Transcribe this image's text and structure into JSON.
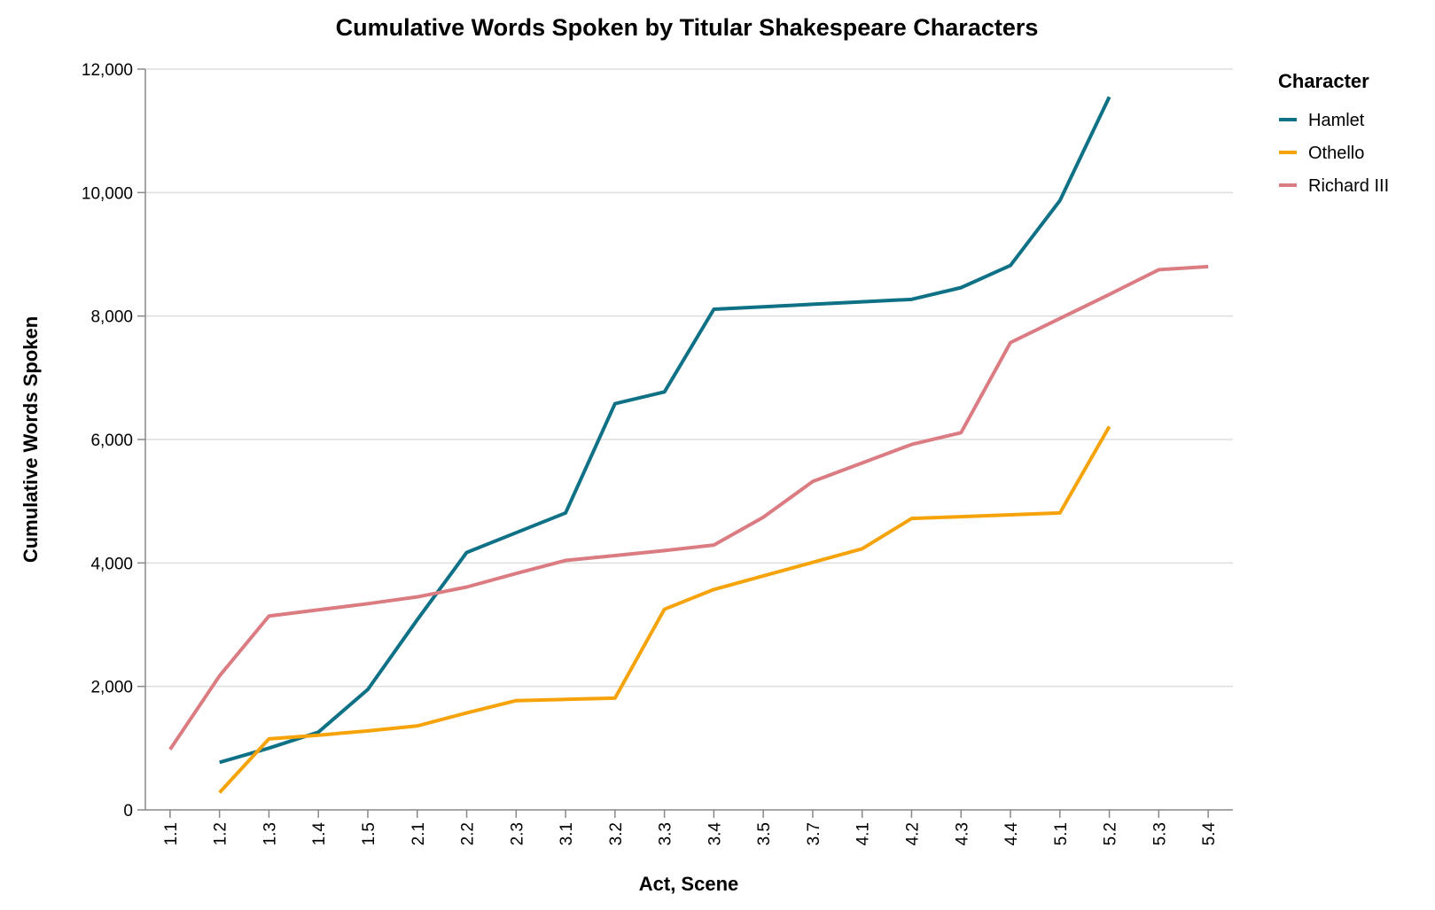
{
  "chart_data": {
    "type": "line",
    "title": "Cumulative Words Spoken by Titular Shakespeare Characters",
    "xlabel": "Act, Scene",
    "ylabel": "Cumulative Words Spoken",
    "ylim": [
      0,
      12000
    ],
    "yticks": [
      "0",
      "2,000",
      "4,000",
      "6,000",
      "8,000",
      "10,000",
      "12,000"
    ],
    "ytick_values": [
      0,
      2000,
      4000,
      6000,
      8000,
      10000,
      12000
    ],
    "categories": [
      "1.1",
      "1.2",
      "1.3",
      "1.4",
      "1.5",
      "2.1",
      "2.2",
      "2.3",
      "3.1",
      "3.2",
      "3.3",
      "3.4",
      "3.5",
      "3.7",
      "4.1",
      "4.2",
      "4.3",
      "4.4",
      "5.1",
      "5.2",
      "5.3",
      "5.4"
    ],
    "grid": true,
    "legend": {
      "title": "Character",
      "position": "right"
    },
    "series": [
      {
        "name": "Hamlet",
        "color": "#0e7185",
        "points": [
          {
            "x": "1.2",
            "y": 770
          },
          {
            "x": "1.3",
            "y": 1000
          },
          {
            "x": "1.4",
            "y": 1260
          },
          {
            "x": "1.5",
            "y": 1950
          },
          {
            "x": "2.1",
            "y": 3080
          },
          {
            "x": "2.2",
            "y": 4170
          },
          {
            "x": "2.3",
            "y": 4490
          },
          {
            "x": "3.1",
            "y": 4810
          },
          {
            "x": "3.2",
            "y": 6580
          },
          {
            "x": "3.3",
            "y": 6770
          },
          {
            "x": "3.4",
            "y": 8110
          },
          {
            "x": "3.5",
            "y": 8150
          },
          {
            "x": "3.7",
            "y": 8190
          },
          {
            "x": "4.1",
            "y": 8230
          },
          {
            "x": "4.2",
            "y": 8270
          },
          {
            "x": "4.3",
            "y": 8460
          },
          {
            "x": "4.4",
            "y": 8820
          },
          {
            "x": "5.1",
            "y": 9870
          },
          {
            "x": "5.2",
            "y": 11550
          }
        ]
      },
      {
        "name": "Othello",
        "color": "#f6a30a",
        "points": [
          {
            "x": "1.2",
            "y": 280
          },
          {
            "x": "1.3",
            "y": 1150
          },
          {
            "x": "1.4",
            "y": 1210
          },
          {
            "x": "1.5",
            "y": 1280
          },
          {
            "x": "2.1",
            "y": 1360
          },
          {
            "x": "2.2",
            "y": 1570
          },
          {
            "x": "2.3",
            "y": 1770
          },
          {
            "x": "3.1",
            "y": 1790
          },
          {
            "x": "3.2",
            "y": 1810
          },
          {
            "x": "3.3",
            "y": 3250
          },
          {
            "x": "3.4",
            "y": 3570
          },
          {
            "x": "3.5",
            "y": 3790
          },
          {
            "x": "3.7",
            "y": 4010
          },
          {
            "x": "4.1",
            "y": 4230
          },
          {
            "x": "4.2",
            "y": 4720
          },
          {
            "x": "4.3",
            "y": 4750
          },
          {
            "x": "4.4",
            "y": 4780
          },
          {
            "x": "5.1",
            "y": 4810
          },
          {
            "x": "5.2",
            "y": 6210
          }
        ]
      },
      {
        "name": "Richard III",
        "color": "#db7b82",
        "points": [
          {
            "x": "1.1",
            "y": 980
          },
          {
            "x": "1.2",
            "y": 2170
          },
          {
            "x": "1.3",
            "y": 3140
          },
          {
            "x": "1.4",
            "y": 3240
          },
          {
            "x": "1.5",
            "y": 3340
          },
          {
            "x": "2.1",
            "y": 3450
          },
          {
            "x": "2.2",
            "y": 3610
          },
          {
            "x": "2.3",
            "y": 3830
          },
          {
            "x": "3.1",
            "y": 4040
          },
          {
            "x": "3.2",
            "y": 4120
          },
          {
            "x": "3.3",
            "y": 4200
          },
          {
            "x": "3.4",
            "y": 4290
          },
          {
            "x": "3.5",
            "y": 4740
          },
          {
            "x": "3.7",
            "y": 5320
          },
          {
            "x": "4.1",
            "y": 5620
          },
          {
            "x": "4.2",
            "y": 5920
          },
          {
            "x": "4.3",
            "y": 6110
          },
          {
            "x": "4.4",
            "y": 7570
          },
          {
            "x": "5.1",
            "y": 7960
          },
          {
            "x": "5.2",
            "y": 8350
          },
          {
            "x": "5.3",
            "y": 8750
          },
          {
            "x": "5.4",
            "y": 8800
          }
        ]
      }
    ]
  }
}
